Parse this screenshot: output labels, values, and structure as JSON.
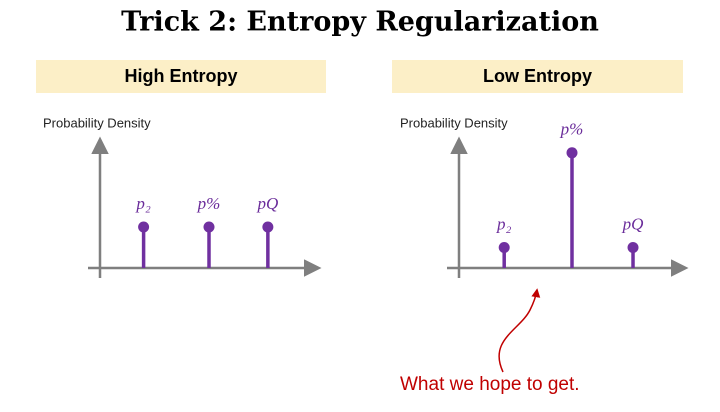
{
  "title": "Trick 2: Entropy Regularization",
  "annotation": "What we hope to get.",
  "chart_data": [
    {
      "type": "stem",
      "title": "High Entropy",
      "ylabel": "Probability Density",
      "categories": [
        "p₂",
        "p%",
        "pQ"
      ],
      "values": [
        0.32,
        0.32,
        0.32
      ],
      "color": "#7030a0",
      "ylim": [
        0,
        1
      ]
    },
    {
      "type": "stem",
      "title": "Low Entropy",
      "ylabel": "Probability Density",
      "categories": [
        "p₂",
        "p%",
        "pQ"
      ],
      "values": [
        0.16,
        0.9,
        0.16
      ],
      "color": "#7030a0",
      "ylim": [
        0,
        1
      ]
    }
  ]
}
